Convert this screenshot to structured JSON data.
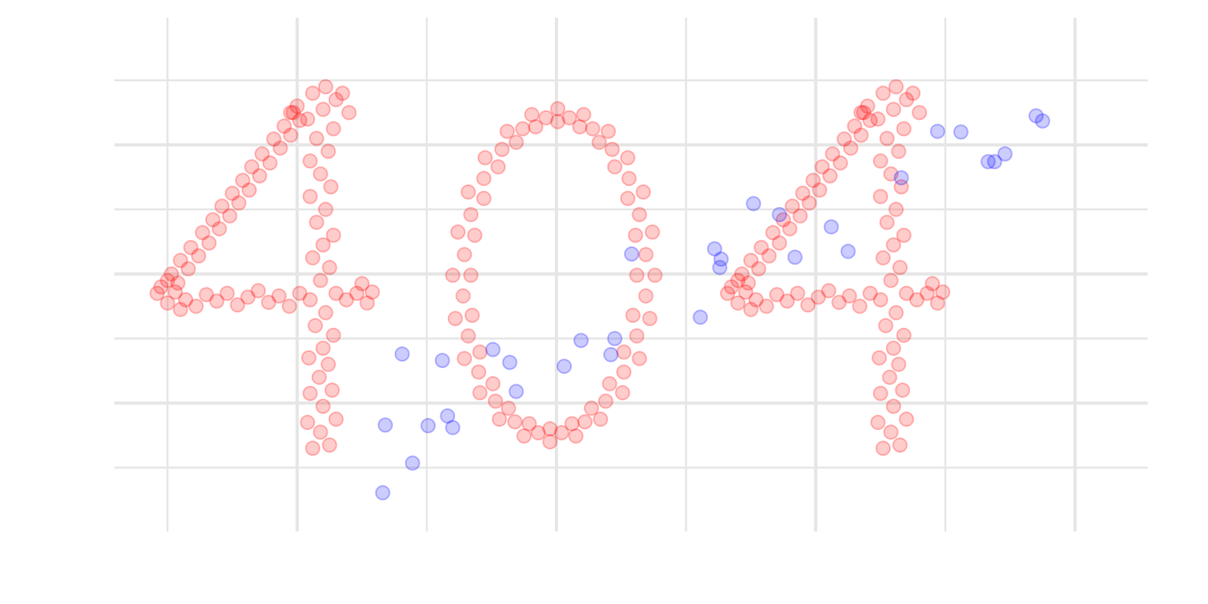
{
  "chart_data": {
    "type": "scatter",
    "xlim": [
      -0.41,
      7.56
    ],
    "ylim": [
      -0.99,
      6.97
    ],
    "xticks": [
      1,
      3,
      5,
      7
    ],
    "xminor": [
      0,
      2,
      4,
      6
    ],
    "yticks": [
      1,
      3,
      5
    ],
    "yminor": [
      0,
      2,
      4,
      6
    ],
    "grid": true,
    "alpha": 0.2,
    "series": [
      {
        "color": "#ff0000",
        "x": [
          1.12,
          1.25,
          1.18,
          1.08,
          1.3,
          1.2,
          1.1,
          1.27,
          1.17,
          1.24,
          1.09,
          1.2,
          1.28,
          1.14,
          1.22,
          1.1,
          1.3,
          1.18,
          1.25,
          1.12,
          1.2,
          1.28,
          1.15,
          1.22,
          1.1,
          1.26,
          1.18,
          1.1,
          1.24,
          1.15,
          1.28,
          1.08,
          1.2,
          1.3,
          1.12,
          1.22,
          1.0,
          0.95,
          1.35,
          1.4,
          0.97,
          0.9,
          0.82,
          0.73,
          0.65,
          0.58,
          0.5,
          0.42,
          0.35,
          0.27,
          0.18,
          0.1,
          0.03,
          -0.05,
          1.02,
          0.95,
          0.87,
          0.79,
          0.71,
          0.63,
          0.55,
          0.48,
          0.4,
          0.32,
          0.24,
          0.16,
          0.08,
          -0.08,
          0.0,
          0.06,
          0.14,
          0.22,
          0.3,
          0.38,
          0.46,
          0.54,
          0.62,
          0.7,
          0.78,
          0.86,
          0.94,
          1.02,
          1.38,
          1.46,
          1.54,
          1.58,
          1.5,
          0.0,
          0.1,
          3.62,
          3.61,
          3.55,
          3.45,
          3.33,
          3.18,
          3.01,
          2.84,
          2.69,
          2.55,
          2.44,
          2.37,
          2.34,
          2.35,
          2.41,
          2.51,
          2.63,
          2.79,
          2.95,
          3.12,
          3.27,
          3.41,
          3.52,
          3.59,
          3.76,
          3.74,
          3.67,
          3.55,
          3.4,
          3.21,
          3.01,
          2.81,
          2.62,
          2.45,
          2.32,
          2.24,
          2.2,
          2.22,
          2.29,
          2.41,
          2.56,
          2.75,
          2.95,
          3.15,
          3.34,
          3.51,
          3.64,
          3.72,
          3.69,
          3.64,
          3.56,
          3.43,
          3.28,
          3.1,
          2.92,
          2.74,
          2.58,
          2.44,
          2.34,
          2.29,
          2.28,
          2.32,
          2.4,
          2.53,
          2.68,
          2.86,
          3.04,
          3.22,
          3.38,
          3.52,
          3.62,
          3.69,
          5.52,
          5.65,
          5.58,
          5.48,
          5.7,
          5.6,
          5.5,
          5.67,
          5.57,
          5.64,
          5.49,
          5.6,
          5.68,
          5.54,
          5.62,
          5.5,
          5.7,
          5.58,
          5.65,
          5.52,
          5.6,
          5.68,
          5.55,
          5.62,
          5.5,
          5.66,
          5.58,
          5.5,
          5.64,
          5.55,
          5.68,
          5.48,
          5.6,
          5.7,
          5.52,
          5.62,
          5.4,
          5.35,
          5.75,
          5.8,
          5.37,
          5.3,
          5.22,
          5.13,
          5.05,
          4.98,
          4.9,
          4.82,
          4.75,
          4.67,
          4.58,
          4.5,
          4.43,
          4.35,
          5.42,
          5.35,
          5.27,
          5.19,
          5.11,
          5.03,
          4.95,
          4.88,
          4.8,
          4.72,
          4.64,
          4.56,
          4.48,
          4.32,
          4.4,
          4.46,
          4.54,
          4.62,
          4.7,
          4.78,
          4.86,
          4.94,
          5.02,
          5.1,
          5.18,
          5.26,
          5.34,
          5.42,
          5.78,
          5.86,
          5.94,
          5.98,
          5.9,
          4.4,
          4.5
        ],
        "values": [
          0.3,
          0.35,
          0.55,
          0.7,
          0.75,
          0.95,
          1.15,
          1.2,
          1.4,
          1.6,
          1.7,
          1.85,
          2.05,
          2.2,
          2.4,
          2.6,
          2.7,
          2.9,
          3.1,
          3.25,
          3.45,
          3.6,
          3.8,
          4.0,
          4.2,
          4.35,
          4.55,
          4.75,
          4.9,
          5.1,
          5.25,
          5.4,
          5.55,
          5.7,
          5.8,
          5.9,
          5.6,
          5.5,
          5.8,
          5.5,
          5.5,
          5.29,
          5.09,
          4.86,
          4.66,
          4.45,
          4.25,
          4.05,
          3.84,
          3.64,
          3.41,
          3.21,
          3.0,
          2.8,
          5.38,
          5.15,
          4.95,
          4.72,
          4.52,
          4.3,
          4.1,
          3.9,
          3.7,
          3.48,
          3.28,
          3.08,
          2.86,
          2.7,
          2.55,
          2.72,
          2.6,
          2.5,
          2.68,
          2.58,
          2.7,
          2.52,
          2.64,
          2.74,
          2.56,
          2.66,
          2.5,
          2.7,
          2.6,
          2.7,
          2.55,
          2.72,
          2.85,
          2.9,
          2.45,
          2.98,
          3.6,
          4.17,
          4.66,
          5.04,
          5.28,
          5.36,
          5.28,
          5.04,
          4.66,
          4.17,
          3.6,
          2.98,
          2.36,
          1.79,
          1.3,
          0.92,
          0.68,
          0.6,
          0.68,
          0.92,
          1.3,
          1.79,
          2.36,
          2.98,
          3.65,
          4.27,
          4.8,
          5.21,
          5.47,
          5.56,
          5.47,
          5.21,
          4.8,
          4.27,
          3.65,
          2.98,
          2.31,
          1.69,
          1.16,
          0.75,
          0.49,
          0.4,
          0.49,
          0.75,
          1.16,
          1.69,
          2.31,
          3.3,
          3.92,
          4.48,
          4.93,
          5.25,
          5.42,
          5.42,
          5.25,
          4.93,
          4.48,
          3.92,
          3.3,
          2.66,
          2.04,
          1.48,
          1.03,
          0.71,
          0.54,
          0.54,
          0.71,
          1.03,
          1.48,
          2.04,
          2.66,
          0.3,
          0.35,
          0.55,
          0.7,
          0.75,
          0.95,
          1.15,
          1.2,
          1.4,
          1.6,
          1.7,
          1.85,
          2.05,
          2.2,
          2.4,
          2.6,
          2.7,
          2.9,
          3.1,
          3.25,
          3.45,
          3.6,
          3.8,
          4.0,
          4.2,
          4.35,
          4.55,
          4.75,
          4.9,
          5.1,
          5.25,
          5.4,
          5.55,
          5.7,
          5.8,
          5.9,
          5.6,
          5.5,
          5.8,
          5.5,
          5.5,
          5.29,
          5.09,
          4.86,
          4.66,
          4.45,
          4.25,
          4.05,
          3.84,
          3.64,
          3.41,
          3.21,
          3.0,
          2.8,
          5.38,
          5.15,
          4.95,
          4.72,
          4.52,
          4.3,
          4.1,
          3.9,
          3.7,
          3.48,
          3.28,
          3.08,
          2.86,
          2.7,
          2.55,
          2.72,
          2.6,
          2.5,
          2.68,
          2.58,
          2.7,
          2.52,
          2.64,
          2.74,
          2.56,
          2.66,
          2.5,
          2.7,
          2.6,
          2.7,
          2.55,
          2.72,
          2.85,
          2.9,
          2.45
        ]
      },
      {
        "color": "#0000ff",
        "x": [
          1.66,
          1.68,
          1.81,
          1.89,
          2.01,
          2.12,
          2.16,
          2.2,
          2.51,
          2.64,
          2.69,
          3.06,
          3.19,
          3.42,
          3.45,
          3.58,
          4.11,
          4.22,
          4.27,
          4.26,
          4.52,
          4.72,
          4.84,
          5.12,
          5.25,
          5.66,
          5.94,
          6.12,
          6.33,
          6.38,
          6.46,
          6.7,
          6.75
        ],
        "values": [
          -0.39,
          0.66,
          1.76,
          0.07,
          0.65,
          1.66,
          0.8,
          0.62,
          1.83,
          1.63,
          1.18,
          1.57,
          1.97,
          1.75,
          2.0,
          3.31,
          2.33,
          3.39,
          3.23,
          3.1,
          4.09,
          3.92,
          3.26,
          3.73,
          3.35,
          4.49,
          5.21,
          5.2,
          4.74,
          4.74,
          4.86,
          5.45,
          5.37
        ]
      }
    ]
  }
}
